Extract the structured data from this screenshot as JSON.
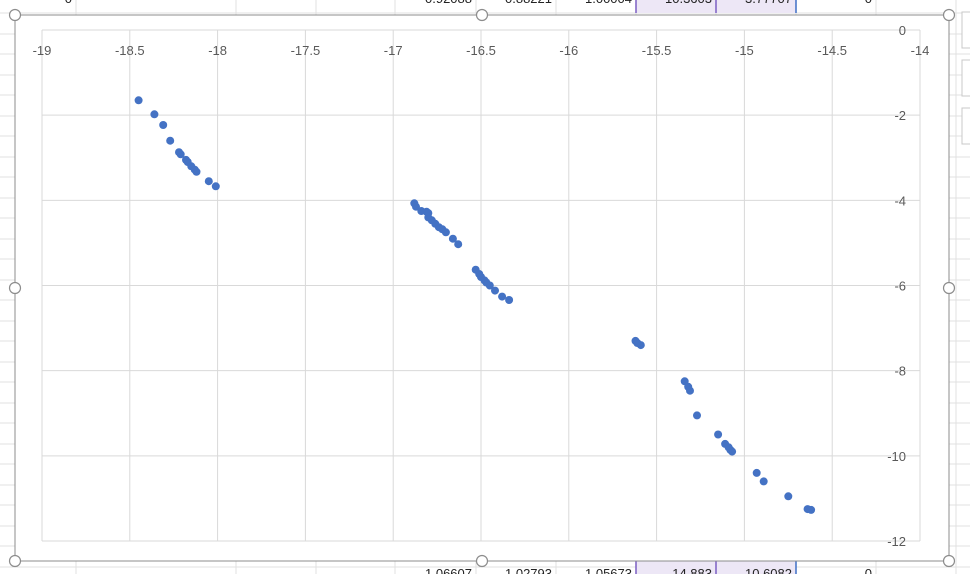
{
  "spreadsheet": {
    "top_row_cells": [
      "0",
      "0.92088",
      "0.88221",
      "1.00004",
      "10.3603",
      "3.77707",
      "0"
    ],
    "bottom_row_cells": [
      "1.06607",
      "1.02793",
      "1.05673",
      "14.883",
      "10.6082",
      "0"
    ]
  },
  "chart_data": {
    "type": "scatter",
    "title": "",
    "xlabel": "",
    "ylabel": "",
    "xlim": [
      -19,
      -14
    ],
    "ylim": [
      -12,
      0
    ],
    "x_ticks": [
      -19,
      -18.5,
      -18,
      -17.5,
      -17,
      -16.5,
      -16,
      -15.5,
      -15,
      -14.5,
      -14
    ],
    "x_tick_labels": [
      "-19",
      "-18.5",
      "-18",
      "-17.5",
      "-17",
      "-16.5",
      "-16",
      "-15.5",
      "-15",
      "-14.5",
      "-14"
    ],
    "y_ticks": [
      0,
      -2,
      -4,
      -6,
      -8,
      -10,
      -12
    ],
    "y_tick_labels": [
      "0",
      "-2",
      "-4",
      "-6",
      "-8",
      "-10",
      "-12"
    ],
    "x_axis_position": "top",
    "y_axis_position": "right",
    "grid": true,
    "legend": "none",
    "marker_color": "#4472c4",
    "series": [
      {
        "points": [
          [
            -18.45,
            -1.65
          ],
          [
            -18.36,
            -1.98
          ],
          [
            -18.31,
            -2.23
          ],
          [
            -18.27,
            -2.6
          ],
          [
            -18.22,
            -2.87
          ],
          [
            -18.21,
            -2.92
          ],
          [
            -18.18,
            -3.05
          ],
          [
            -18.17,
            -3.1
          ],
          [
            -18.15,
            -3.2
          ],
          [
            -18.13,
            -3.28
          ],
          [
            -18.12,
            -3.33
          ],
          [
            -18.05,
            -3.55
          ],
          [
            -18.01,
            -3.67
          ],
          [
            -16.88,
            -4.07
          ],
          [
            -16.87,
            -4.15
          ],
          [
            -16.84,
            -4.25
          ],
          [
            -16.81,
            -4.27
          ],
          [
            -16.8,
            -4.3
          ],
          [
            -16.8,
            -4.4
          ],
          [
            -16.78,
            -4.47
          ],
          [
            -16.76,
            -4.55
          ],
          [
            -16.74,
            -4.63
          ],
          [
            -16.72,
            -4.68
          ],
          [
            -16.7,
            -4.75
          ],
          [
            -16.66,
            -4.9
          ],
          [
            -16.63,
            -5.03
          ],
          [
            -16.53,
            -5.63
          ],
          [
            -16.51,
            -5.73
          ],
          [
            -16.5,
            -5.8
          ],
          [
            -16.48,
            -5.88
          ],
          [
            -16.47,
            -5.93
          ],
          [
            -16.45,
            -6.0
          ],
          [
            -16.42,
            -6.12
          ],
          [
            -16.38,
            -6.26
          ],
          [
            -16.34,
            -6.34
          ],
          [
            -15.62,
            -7.3
          ],
          [
            -15.61,
            -7.35
          ],
          [
            -15.59,
            -7.4
          ],
          [
            -15.34,
            -8.25
          ],
          [
            -15.32,
            -8.38
          ],
          [
            -15.31,
            -8.47
          ],
          [
            -15.27,
            -9.05
          ],
          [
            -15.15,
            -9.5
          ],
          [
            -15.11,
            -9.72
          ],
          [
            -15.09,
            -9.8
          ],
          [
            -15.08,
            -9.86
          ],
          [
            -15.07,
            -9.9
          ],
          [
            -14.93,
            -10.4
          ],
          [
            -14.89,
            -10.6
          ],
          [
            -14.75,
            -10.95
          ],
          [
            -14.64,
            -11.25
          ],
          [
            -14.62,
            -11.27
          ]
        ]
      }
    ]
  }
}
